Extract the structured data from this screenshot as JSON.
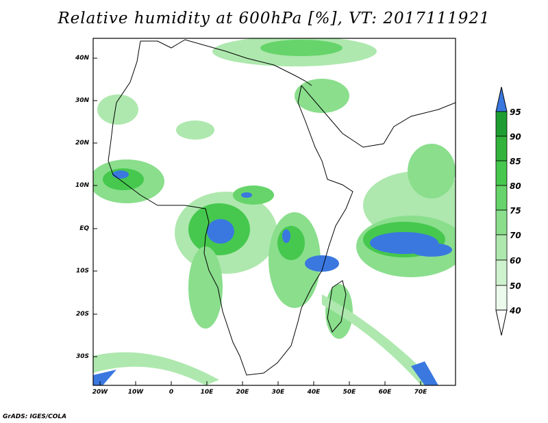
{
  "title": "Relative humidity at 600hPa [%], VT: 2017111921",
  "lat_labels": [
    "40N",
    "30N",
    "20N",
    "10N",
    "EQ",
    "10S",
    "20S",
    "30S"
  ],
  "lon_labels": [
    "20W",
    "10W",
    "0",
    "10E",
    "20E",
    "30E",
    "40E",
    "50E",
    "60E",
    "70E"
  ],
  "colorbar": {
    "labels": [
      "95",
      "90",
      "85",
      "80",
      "75",
      "70",
      "60",
      "50",
      "40"
    ],
    "colors": [
      "#3a78e0",
      "#1e9e32",
      "#32b43c",
      "#46c84e",
      "#66d46a",
      "#8ade8c",
      "#aee8ae",
      "#cef2ce",
      "#ecfaec"
    ]
  },
  "credit": "GrADS: IGES/COLA"
}
